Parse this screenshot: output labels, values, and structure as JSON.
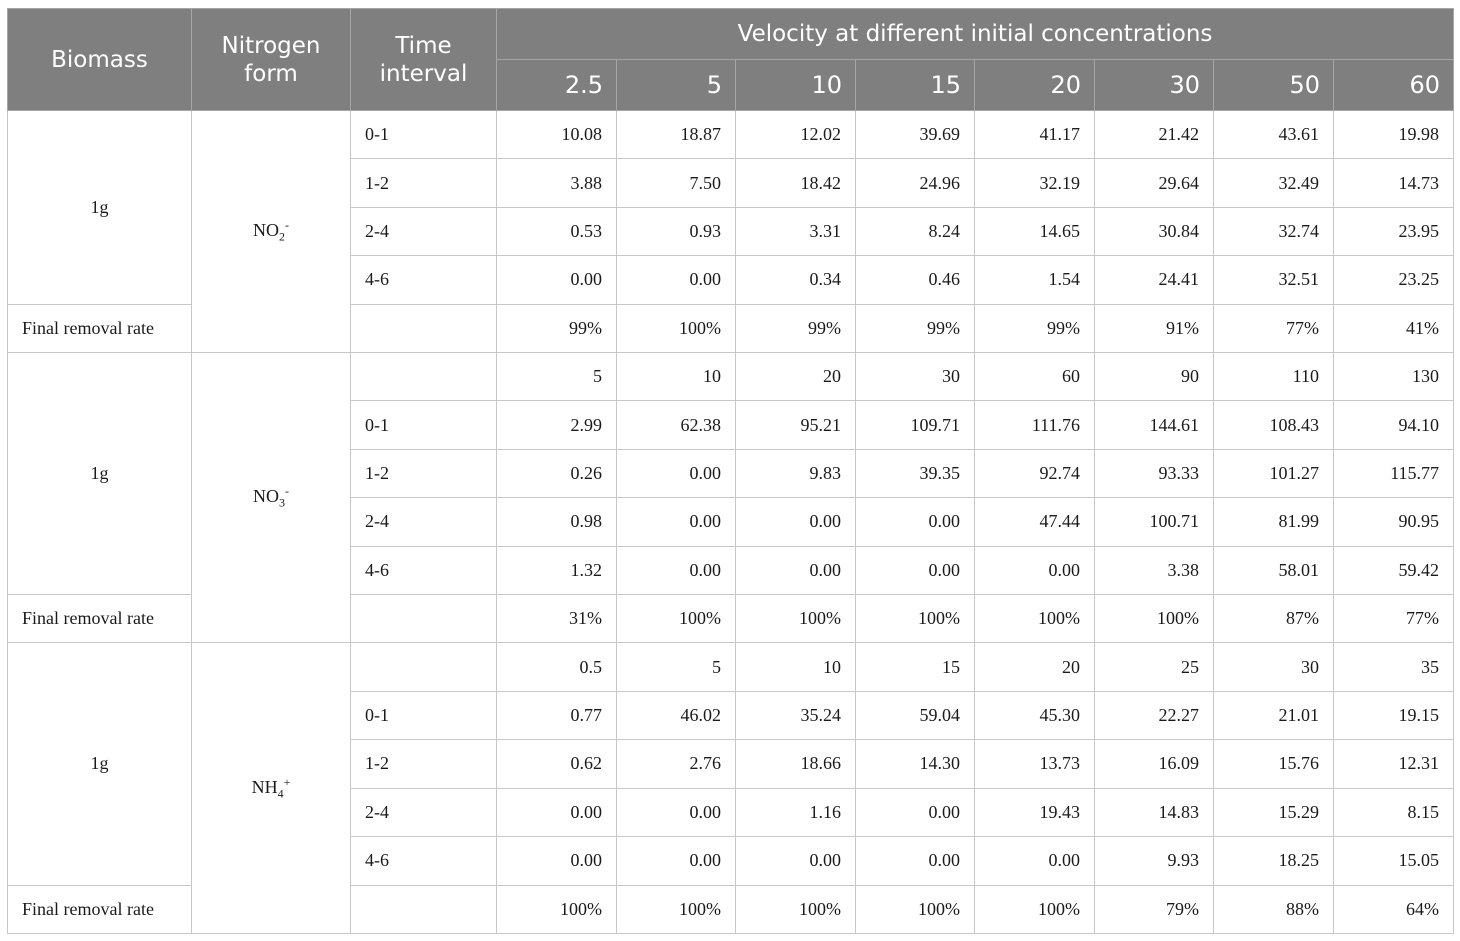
{
  "header": {
    "biomass": "Biomass",
    "nitrogen_form": "Nitrogen form",
    "time_interval": "Time interval",
    "group_title": "Velocity at different initial concentrations",
    "concentrations": [
      "2.5",
      "5",
      "10",
      "15",
      "20",
      "30",
      "50",
      "60"
    ]
  },
  "sections": [
    {
      "biomass": "1g",
      "form_base": "NO",
      "form_sub": "2",
      "form_sup": "-",
      "concentration_row": null,
      "rows": [
        {
          "interval": "0-1",
          "values": [
            "10.08",
            "18.87",
            "12.02",
            "39.69",
            "41.17",
            "21.42",
            "43.61",
            "19.98"
          ]
        },
        {
          "interval": "1-2",
          "values": [
            "3.88",
            "7.50",
            "18.42",
            "24.96",
            "32.19",
            "29.64",
            "32.49",
            "14.73"
          ]
        },
        {
          "interval": "2-4",
          "values": [
            "0.53",
            "0.93",
            "3.31",
            "8.24",
            "14.65",
            "30.84",
            "32.74",
            "23.95"
          ]
        },
        {
          "interval": "4-6",
          "values": [
            "0.00",
            "0.00",
            "0.34",
            "0.46",
            "1.54",
            "24.41",
            "32.51",
            "23.25"
          ]
        }
      ],
      "removal_label": "Final removal rate",
      "removal": [
        "99%",
        "100%",
        "99%",
        "99%",
        "99%",
        "91%",
        "77%",
        "41%"
      ]
    },
    {
      "biomass": "1g",
      "form_base": "NO",
      "form_sub": "3",
      "form_sup": "-",
      "concentration_row": [
        "5",
        "10",
        "20",
        "30",
        "60",
        "90",
        "110",
        "130"
      ],
      "rows": [
        {
          "interval": "0-1",
          "values": [
            "2.99",
            "62.38",
            "95.21",
            "109.71",
            "111.76",
            "144.61",
            "108.43",
            "94.10"
          ]
        },
        {
          "interval": "1-2",
          "values": [
            "0.26",
            "0.00",
            "9.83",
            "39.35",
            "92.74",
            "93.33",
            "101.27",
            "115.77"
          ]
        },
        {
          "interval": "2-4",
          "values": [
            "0.98",
            "0.00",
            "0.00",
            "0.00",
            "47.44",
            "100.71",
            "81.99",
            "90.95"
          ]
        },
        {
          "interval": "4-6",
          "values": [
            "1.32",
            "0.00",
            "0.00",
            "0.00",
            "0.00",
            "3.38",
            "58.01",
            "59.42"
          ]
        }
      ],
      "removal_label": "Final removal rate",
      "removal": [
        "31%",
        "100%",
        "100%",
        "100%",
        "100%",
        "100%",
        "87%",
        "77%"
      ]
    },
    {
      "biomass": "1g",
      "form_base": "NH",
      "form_sub": "4",
      "form_sup": "+",
      "concentration_row": [
        "0.5",
        "5",
        "10",
        "15",
        "20",
        "25",
        "30",
        "35"
      ],
      "rows": [
        {
          "interval": "0-1",
          "values": [
            "0.77",
            "46.02",
            "35.24",
            "59.04",
            "45.30",
            "22.27",
            "21.01",
            "19.15"
          ]
        },
        {
          "interval": "1-2",
          "values": [
            "0.62",
            "2.76",
            "18.66",
            "14.30",
            "13.73",
            "16.09",
            "15.76",
            "12.31"
          ]
        },
        {
          "interval": "2-4",
          "values": [
            "0.00",
            "0.00",
            "1.16",
            "0.00",
            "19.43",
            "14.83",
            "15.29",
            "8.15"
          ]
        },
        {
          "interval": "4-6",
          "values": [
            "0.00",
            "0.00",
            "0.00",
            "0.00",
            "0.00",
            "9.93",
            "18.25",
            "15.05"
          ]
        }
      ],
      "removal_label": "Final removal rate",
      "removal": [
        "100%",
        "100%",
        "100%",
        "100%",
        "100%",
        "79%",
        "88%",
        "64%"
      ]
    }
  ]
}
